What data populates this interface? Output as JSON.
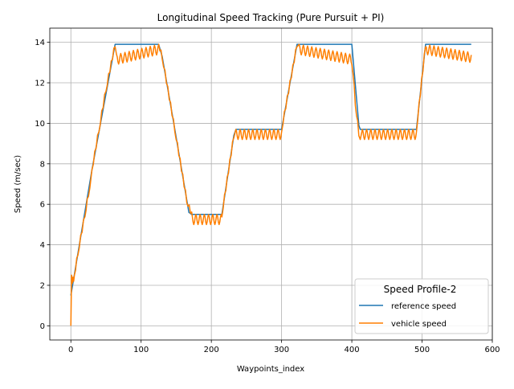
{
  "chart_data": {
    "type": "line",
    "title": "Longitudinal Speed Tracking (Pure Pursuit + PI)",
    "xlabel": "Waypoints_index",
    "ylabel": "Speed (m/sec)",
    "xlim": [
      -30,
      600
    ],
    "ylim": [
      -0.7,
      14.7
    ],
    "xticks": [
      0,
      100,
      200,
      300,
      400,
      500,
      600
    ],
    "yticks": [
      0,
      2,
      4,
      6,
      8,
      10,
      12,
      14
    ],
    "grid": true,
    "legend": {
      "title": "Speed Profile-2",
      "placement": "lower-right",
      "entries": [
        "reference speed",
        "vehicle speed"
      ]
    },
    "series": [
      {
        "name": "reference speed",
        "color": "#1f77b4",
        "x": [
          0,
          30,
          63,
          125,
          130,
          148,
          168,
          172,
          215,
          232,
          235,
          300,
          322,
          325,
          400,
          410,
          412,
          415,
          492,
          505,
          570
        ],
        "y": [
          1.5,
          7.7,
          13.9,
          13.9,
          13.3,
          9.7,
          5.6,
          5.5,
          5.5,
          9.4,
          9.7,
          9.7,
          13.9,
          13.9,
          13.9,
          9.9,
          9.7,
          9.7,
          9.7,
          13.9,
          13.9
        ]
      },
      {
        "name": "vehicle speed",
        "color": "#ff7f00",
        "x": [
          0,
          1,
          2,
          3,
          4,
          5,
          10,
          20,
          25,
          27,
          30,
          40,
          50,
          63,
          65,
          125,
          130,
          148,
          165,
          172,
          215,
          232,
          235,
          300,
          322,
          325,
          400,
          405,
          410,
          412,
          415,
          492,
          505,
          570
        ],
        "y": [
          0.0,
          2.5,
          2.1,
          2.4,
          2.2,
          2.5,
          3.6,
          5.5,
          6.5,
          6.8,
          7.7,
          9.7,
          11.7,
          13.9,
          13.4,
          13.9,
          13.3,
          9.7,
          6.2,
          5.5,
          5.5,
          9.4,
          9.7,
          9.7,
          13.9,
          13.9,
          13.4,
          11.0,
          9.5,
          9.2,
          9.7,
          9.7,
          13.9,
          13.5
        ],
        "oscillation_amplitude": 0.5
      }
    ]
  }
}
